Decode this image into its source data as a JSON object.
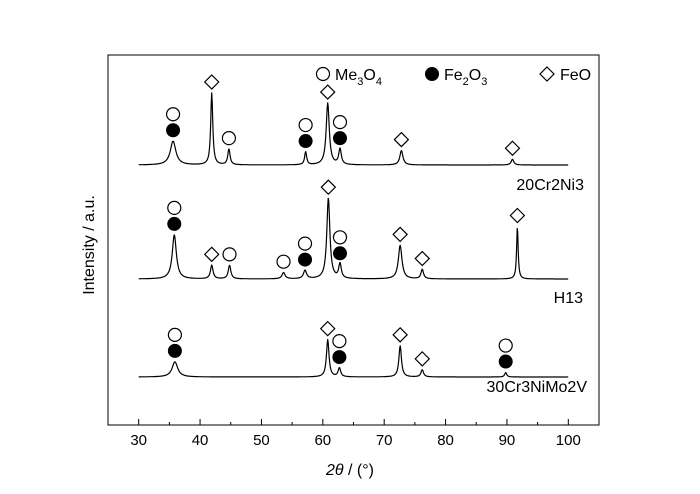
{
  "chart_data": {
    "type": "line",
    "xlabel_symbol": "2θ",
    "xlabel_unit": " / (°)",
    "ylabel": "Intensity / a.u.",
    "xlim": [
      25,
      105
    ],
    "x_ticks": [
      "30",
      "40",
      "50",
      "60",
      "70",
      "80",
      "90",
      "100"
    ],
    "legend": [
      {
        "marker": "open-circle",
        "base": "Me",
        "sub1": "3",
        "mid": "O",
        "sub2": "4"
      },
      {
        "marker": "filled-circle",
        "base": "Fe",
        "sub1": "2",
        "mid": "O",
        "sub2": "3"
      },
      {
        "marker": "diamond",
        "base": "FeO",
        "sub1": "",
        "mid": "",
        "sub2": ""
      }
    ],
    "phase_keys": {
      "C": "Me3O4",
      "F": "Fe2O3",
      "D": "FeO"
    },
    "series": [
      {
        "name": "20Cr2Ni3",
        "x_range": [
          30,
          100
        ],
        "peaks": [
          {
            "x": 35.6,
            "h": 0.33,
            "w": 0.55,
            "phases": [
              "C",
              "F"
            ]
          },
          {
            "x": 41.9,
            "h": 1.0,
            "w": 0.2,
            "phases": [
              "D"
            ]
          },
          {
            "x": 44.7,
            "h": 0.22,
            "w": 0.22,
            "phases": [
              "C"
            ]
          },
          {
            "x": 57.2,
            "h": 0.18,
            "w": 0.2,
            "phases": [
              "C",
              "F"
            ]
          },
          {
            "x": 60.8,
            "h": 0.86,
            "w": 0.3,
            "phases": [
              "D"
            ]
          },
          {
            "x": 62.8,
            "h": 0.22,
            "w": 0.25,
            "phases": [
              "C",
              "F"
            ]
          },
          {
            "x": 72.8,
            "h": 0.2,
            "w": 0.3,
            "phases": [
              "D"
            ]
          },
          {
            "x": 90.9,
            "h": 0.08,
            "w": 0.25,
            "phases": [
              "D"
            ]
          }
        ]
      },
      {
        "name": "H13",
        "x_range": [
          30,
          100
        ],
        "peaks": [
          {
            "x": 35.8,
            "h": 0.42,
            "w": 0.4,
            "phases": [
              "C",
              "F"
            ]
          },
          {
            "x": 41.9,
            "h": 0.13,
            "w": 0.25,
            "phases": [
              "D"
            ]
          },
          {
            "x": 44.8,
            "h": 0.13,
            "w": 0.25,
            "phases": [
              "C"
            ]
          },
          {
            "x": 53.6,
            "h": 0.06,
            "w": 0.3,
            "phases": [
              "C"
            ]
          },
          {
            "x": 57.1,
            "h": 0.08,
            "w": 0.3,
            "phases": [
              "C",
              "F"
            ]
          },
          {
            "x": 60.9,
            "h": 0.77,
            "w": 0.3,
            "phases": [
              "D"
            ]
          },
          {
            "x": 62.8,
            "h": 0.14,
            "w": 0.25,
            "phases": [
              "C",
              "F"
            ]
          },
          {
            "x": 72.6,
            "h": 0.32,
            "w": 0.35,
            "phases": [
              "D"
            ]
          },
          {
            "x": 76.2,
            "h": 0.09,
            "w": 0.25,
            "phases": [
              "D"
            ]
          },
          {
            "x": 91.7,
            "h": 0.5,
            "w": 0.15,
            "phases": [
              "D"
            ]
          }
        ]
      },
      {
        "name": "30Cr3NiMo2V",
        "x_range": [
          30,
          100
        ],
        "peaks": [
          {
            "x": 35.9,
            "h": 0.17,
            "w": 0.55,
            "phases": [
              "C",
              "F"
            ]
          },
          {
            "x": 60.8,
            "h": 0.42,
            "w": 0.25,
            "phases": [
              "D"
            ]
          },
          {
            "x": 62.7,
            "h": 0.1,
            "w": 0.25,
            "phases": [
              "C",
              "F"
            ]
          },
          {
            "x": 72.6,
            "h": 0.35,
            "w": 0.25,
            "phases": [
              "D"
            ]
          },
          {
            "x": 76.2,
            "h": 0.08,
            "w": 0.25,
            "phases": [
              "D"
            ]
          },
          {
            "x": 89.8,
            "h": 0.05,
            "w": 0.2,
            "phases": [
              "C",
              "F"
            ]
          }
        ]
      }
    ]
  }
}
